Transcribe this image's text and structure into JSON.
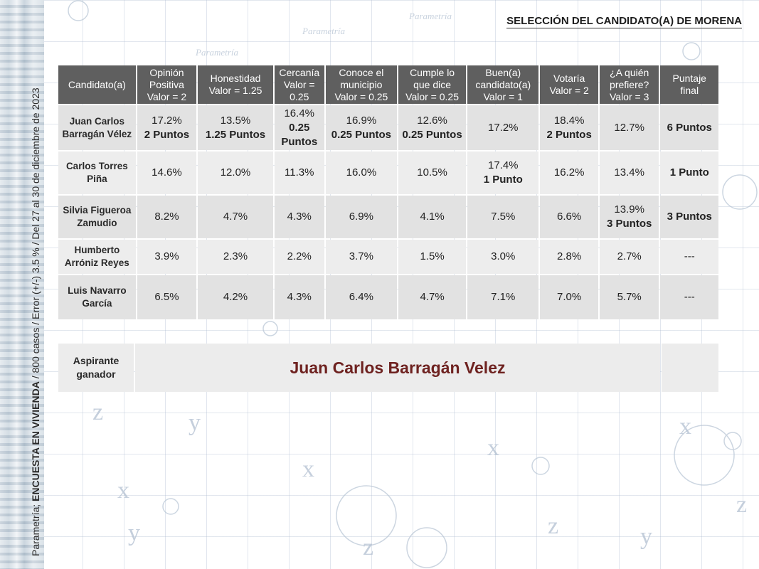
{
  "header": {
    "title": "SELECCIÓN DEL CANDIDATO(A) DE MORENA"
  },
  "side_caption": {
    "prefix": "Parametría; ",
    "bold": "ENCUESTA EN VIVIENDA",
    "suffix": " / 800 casos / Error (+/-) 3.5 % / Del 27 al 30 de diciembre de 2023"
  },
  "table": {
    "columns": [
      {
        "l1": "Candidato(a)",
        "l2": "",
        "l3": ""
      },
      {
        "l1": "Opinión",
        "l2": "Positiva",
        "l3": "Valor = 2"
      },
      {
        "l1": "Honestidad",
        "l2": "Valor = 1.25",
        "l3": ""
      },
      {
        "l1": "Cercanía",
        "l2": "Valor =",
        "l3": "0.25"
      },
      {
        "l1": "Conoce el",
        "l2": "municipio",
        "l3": "Valor = 0.25"
      },
      {
        "l1": "Cumple lo",
        "l2": "que dice",
        "l3": "Valor = 0.25"
      },
      {
        "l1": "Buen(a)",
        "l2": "candidato(a)",
        "l3": "Valor = 1"
      },
      {
        "l1": "Votaría",
        "l2": "Valor = 2",
        "l3": ""
      },
      {
        "l1": "¿A quién",
        "l2": "prefiere?",
        "l3": "Valor = 3"
      },
      {
        "l1": "Puntaje",
        "l2": "final",
        "l3": ""
      }
    ],
    "rows": [
      {
        "name_l1": "Juan Carlos",
        "name_l2": "Barragán Vélez",
        "cells": [
          {
            "v": "17.2%",
            "p": "2 Puntos",
            "p2": ""
          },
          {
            "v": "13.5%",
            "p": "1.25 Puntos",
            "p2": ""
          },
          {
            "v": "16.4%",
            "p": "0.25",
            "p2": "Puntos"
          },
          {
            "v": "16.9%",
            "p": "0.25 Puntos",
            "p2": ""
          },
          {
            "v": "12.6%",
            "p": "0.25 Puntos",
            "p2": ""
          },
          {
            "v": "17.2%",
            "p": "",
            "p2": ""
          },
          {
            "v": "18.4%",
            "p": "2 Puntos",
            "p2": ""
          },
          {
            "v": "12.7%",
            "p": "",
            "p2": ""
          }
        ],
        "final": "6 Puntos"
      },
      {
        "name_l1": "Carlos Torres",
        "name_l2": "Piña",
        "cells": [
          {
            "v": "14.6%",
            "p": "",
            "p2": ""
          },
          {
            "v": "12.0%",
            "p": "",
            "p2": ""
          },
          {
            "v": "11.3%",
            "p": "",
            "p2": ""
          },
          {
            "v": "16.0%",
            "p": "",
            "p2": ""
          },
          {
            "v": "10.5%",
            "p": "",
            "p2": ""
          },
          {
            "v": "17.4%",
            "p": "1 Punto",
            "p2": ""
          },
          {
            "v": "16.2%",
            "p": "",
            "p2": ""
          },
          {
            "v": "13.4%",
            "p": "",
            "p2": ""
          }
        ],
        "final": "1 Punto"
      },
      {
        "name_l1": "Silvia Figueroa",
        "name_l2": "Zamudio",
        "cells": [
          {
            "v": "8.2%",
            "p": "",
            "p2": ""
          },
          {
            "v": "4.7%",
            "p": "",
            "p2": ""
          },
          {
            "v": "4.3%",
            "p": "",
            "p2": ""
          },
          {
            "v": "6.9%",
            "p": "",
            "p2": ""
          },
          {
            "v": "4.1%",
            "p": "",
            "p2": ""
          },
          {
            "v": "7.5%",
            "p": "",
            "p2": ""
          },
          {
            "v": "6.6%",
            "p": "",
            "p2": ""
          },
          {
            "v": "13.9%",
            "p": "3 Puntos",
            "p2": ""
          }
        ],
        "final": "3 Puntos"
      },
      {
        "name_l1": "Humberto",
        "name_l2": "Arróniz Reyes",
        "cells": [
          {
            "v": "3.9%",
            "p": "",
            "p2": ""
          },
          {
            "v": "2.3%",
            "p": "",
            "p2": ""
          },
          {
            "v": "2.2%",
            "p": "",
            "p2": ""
          },
          {
            "v": "3.7%",
            "p": "",
            "p2": ""
          },
          {
            "v": "1.5%",
            "p": "",
            "p2": ""
          },
          {
            "v": "3.0%",
            "p": "",
            "p2": ""
          },
          {
            "v": "2.8%",
            "p": "",
            "p2": ""
          },
          {
            "v": "2.7%",
            "p": "",
            "p2": ""
          }
        ],
        "final": "---"
      },
      {
        "name_l1": "Luis Navarro",
        "name_l2": "García",
        "cells": [
          {
            "v": "6.5%",
            "p": "",
            "p2": ""
          },
          {
            "v": "4.2%",
            "p": "",
            "p2": ""
          },
          {
            "v": "4.3%",
            "p": "",
            "p2": ""
          },
          {
            "v": "6.4%",
            "p": "",
            "p2": ""
          },
          {
            "v": "4.7%",
            "p": "",
            "p2": ""
          },
          {
            "v": "7.1%",
            "p": "",
            "p2": ""
          },
          {
            "v": "7.0%",
            "p": "",
            "p2": ""
          },
          {
            "v": "5.7%",
            "p": "",
            "p2": ""
          }
        ],
        "final": "---"
      }
    ]
  },
  "winner": {
    "label_l1": "Aspirante",
    "label_l2": "ganador",
    "name": "Juan Carlos Barragán Velez"
  },
  "background": {
    "watermark": "Parametría",
    "letters": [
      "z",
      "y",
      "x"
    ],
    "grid_color": "#aab9cd",
    "header_color": "#5f5f5f",
    "winner_color": "#6e2220"
  }
}
